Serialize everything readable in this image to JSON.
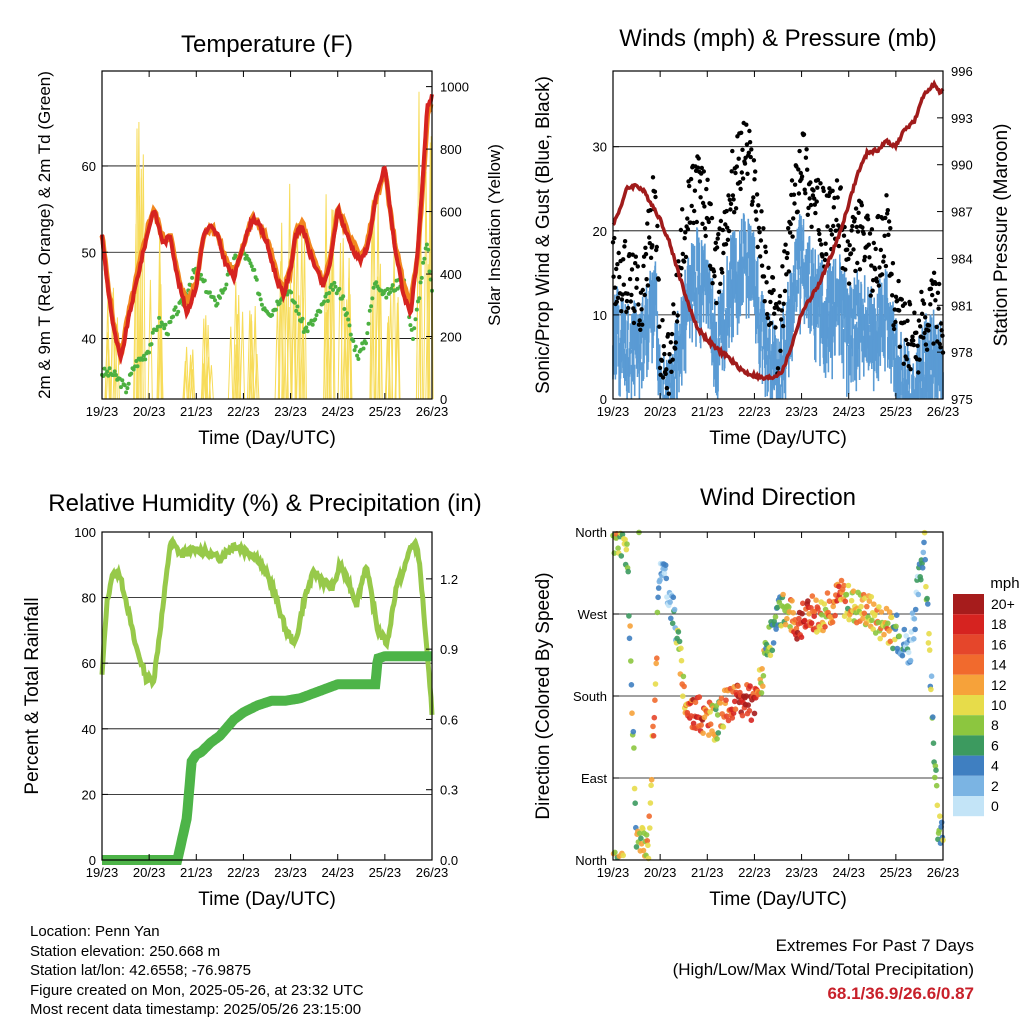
{
  "x_ticks": [
    "19/23",
    "20/23",
    "21/23",
    "22/23",
    "23/23",
    "24/23",
    "25/23",
    "26/23"
  ],
  "colors": {
    "temp_red": "#d62320",
    "temp_orange": "#f2871f",
    "dew_green": "#4bb040",
    "solar_yellow": "#f7dc5a",
    "wind_black": "#000000",
    "sonic_blue": "#5a9bd4",
    "pressure_maroon": "#a01b1b",
    "rh_green": "#97c94a",
    "rain_green": "#4db448"
  },
  "chart_data": [
    {
      "type": "line",
      "title": "Temperature (F)",
      "xlabel": "Time (Day/UTC)",
      "ylabel_left": "2m & 9m T (Red, Orange) & 2m Td (Green)",
      "ylabel_right": "Solar Insolation (Yellow)",
      "x_range_days": [
        0,
        7
      ],
      "ylim_left": [
        33,
        71
      ],
      "ylim_right": [
        0,
        1050
      ],
      "yticks_left": [
        40,
        50,
        60
      ],
      "yticks_right": [
        0,
        200,
        400,
        600,
        800,
        1000
      ],
      "grid_y": true,
      "series": [
        {
          "name": "2m T",
          "x": [
            0,
            0.1,
            0.25,
            0.4,
            0.55,
            0.75,
            1.0,
            1.1,
            1.3,
            1.45,
            1.6,
            1.8,
            2.0,
            2.15,
            2.3,
            2.45,
            2.6,
            2.8,
            3.0,
            3.2,
            3.35,
            3.5,
            3.7,
            3.85,
            4.0,
            4.1,
            4.25,
            4.4,
            4.55,
            4.7,
            4.85,
            5.0,
            5.2,
            5.35,
            5.5,
            5.65,
            5.8,
            6.0,
            6.2,
            6.4,
            6.55,
            6.7,
            6.8,
            6.9,
            7.0
          ],
          "y": [
            52,
            47,
            41,
            37.5,
            42,
            47,
            53,
            55,
            51,
            52,
            47,
            43,
            46,
            52,
            53,
            52,
            49,
            47,
            51,
            54,
            53,
            51,
            47,
            45,
            48,
            52,
            53,
            50,
            48,
            46,
            49,
            55,
            52,
            50,
            49,
            51,
            56,
            60,
            51,
            45,
            43,
            50,
            58,
            67,
            68
          ]
        },
        {
          "name": "9m T",
          "x": [
            0,
            0.1,
            0.25,
            0.4,
            0.55,
            0.75,
            1.0,
            1.1,
            1.3,
            1.45,
            1.6,
            1.8,
            2.0,
            2.15,
            2.3,
            2.45,
            2.6,
            2.8,
            3.0,
            3.2,
            3.35,
            3.5,
            3.7,
            3.85,
            4.0,
            4.1,
            4.25,
            4.4,
            4.55,
            4.7,
            4.85,
            5.0,
            5.2,
            5.35,
            5.5,
            5.65,
            5.8,
            6.0,
            6.2,
            6.4,
            6.55,
            6.7,
            6.8,
            6.9,
            7.0
          ],
          "y": [
            52,
            47.5,
            41.5,
            38,
            42.5,
            47.5,
            53.5,
            55,
            51.5,
            52,
            47.5,
            44,
            46.5,
            52,
            53,
            52,
            49.5,
            47.5,
            51,
            54,
            53,
            51.5,
            47.5,
            45.5,
            48,
            52,
            53.5,
            50.5,
            48.5,
            46.5,
            49.5,
            55,
            52.5,
            50.5,
            49.5,
            51.5,
            56,
            59.5,
            51.5,
            46,
            44,
            50,
            57,
            66,
            67
          ]
        },
        {
          "name": "2m Td",
          "x": [
            0,
            0.2,
            0.4,
            0.5,
            0.7,
            0.9,
            1.0,
            1.2,
            1.4,
            1.55,
            1.7,
            1.9,
            2.0,
            2.2,
            2.4,
            2.6,
            2.8,
            3.0,
            3.2,
            3.4,
            3.6,
            3.7,
            3.9,
            4.1,
            4.3,
            4.5,
            4.7,
            4.9,
            5.1,
            5.3,
            5.45,
            5.6,
            5.8,
            6.0,
            6.2,
            6.4,
            6.6,
            6.8,
            6.9,
            7.0
          ],
          "y": [
            36,
            36,
            35,
            34,
            37,
            38,
            39,
            42,
            41,
            43,
            44,
            47,
            48,
            46,
            44,
            46,
            49,
            50,
            48,
            44,
            43,
            44,
            46,
            44,
            41,
            42,
            44,
            46,
            45,
            40,
            38,
            40,
            47,
            45,
            46,
            47,
            40,
            48,
            51,
            45
          ]
        },
        {
          "name": "Solar Insolation",
          "note_peaks_x": [
            0.2,
            0.85,
            1.15,
            1.85,
            2.2,
            2.85,
            3.15,
            3.85,
            4.2,
            4.85,
            5.15,
            5.85,
            6.15,
            6.85
          ],
          "peaks": [
            380,
            1010,
            620,
            180,
            290,
            420,
            350,
            730,
            570,
            700,
            560,
            760,
            650,
            1010
          ]
        }
      ]
    },
    {
      "type": "scatter",
      "title": "Winds (mph) & Pressure (mb)",
      "xlabel": "Time (Day/UTC)",
      "ylabel_left": "Sonic/Prop Wind & Gust (Blue, Black)",
      "ylabel_right": "Station Pressure (Maroon)",
      "ylim_left": [
        0,
        39
      ],
      "ylim_right": [
        975,
        996
      ],
      "yticks_left": [
        0,
        10,
        20,
        30
      ],
      "yticks_right": [
        975,
        978,
        981,
        984,
        987,
        990,
        993,
        996
      ],
      "grid_y": true,
      "series": [
        {
          "name": "Pressure",
          "type": "line",
          "x": [
            0,
            0.1,
            0.3,
            0.5,
            0.65,
            0.8,
            1.0,
            1.2,
            1.4,
            1.6,
            1.8,
            2.0,
            2.2,
            2.4,
            2.6,
            2.8,
            3.0,
            3.2,
            3.4,
            3.6,
            3.8,
            4.0,
            4.2,
            4.4,
            4.6,
            4.8,
            5.0,
            5.2,
            5.4,
            5.6,
            5.8,
            6.0,
            6.2,
            6.4,
            6.6,
            6.8,
            6.95,
            7.0
          ],
          "y": [
            986.2,
            986.8,
            988.5,
            988.7,
            988.3,
            987.6,
            986.5,
            985,
            983,
            981,
            979.5,
            978.8,
            978.2,
            977.8,
            977.2,
            976.7,
            976.5,
            976.3,
            976.4,
            976.8,
            978.5,
            980.5,
            981.5,
            982.5,
            984,
            985.5,
            987.5,
            989.5,
            990.8,
            990.9,
            991.5,
            991.2,
            992.3,
            992.8,
            994.5,
            995.2,
            994.5,
            994.8
          ]
        },
        {
          "name": "Gust",
          "type": "scatter",
          "x": [
            0,
            0.3,
            0.6,
            0.9,
            1.0,
            1.2,
            1.5,
            1.8,
            2.0,
            2.2,
            2.5,
            2.8,
            3.0,
            3.2,
            3.5,
            3.8,
            4.0,
            4.2,
            4.5,
            4.8,
            5.0,
            5.2,
            5.5,
            5.8,
            6.0,
            6.2,
            6.4,
            6.6,
            6.8,
            7.0
          ],
          "y": [
            16,
            14,
            12,
            24,
            6,
            3,
            20,
            26,
            22,
            14,
            25,
            30,
            26,
            16,
            7,
            22,
            30,
            24,
            20,
            22,
            16,
            20,
            16,
            20,
            11,
            8,
            6,
            10,
            11,
            9
          ]
        },
        {
          "name": "Sonic/Prop Wind",
          "type": "scatter",
          "x": [
            0,
            0.3,
            0.6,
            0.9,
            1.0,
            1.2,
            1.5,
            1.8,
            2.0,
            2.2,
            2.5,
            2.8,
            3.0,
            3.2,
            3.5,
            3.8,
            4.0,
            4.2,
            4.5,
            4.8,
            5.0,
            5.2,
            5.5,
            5.8,
            6.0,
            6.2,
            6.4,
            6.6,
            6.8,
            7.0
          ],
          "y": [
            10,
            8,
            8,
            14,
            2,
            1,
            12,
            17,
            14,
            8,
            16,
            19,
            16,
            9,
            4,
            14,
            19,
            15,
            12,
            14,
            10,
            12,
            10,
            12,
            6,
            3,
            2,
            6,
            7,
            6
          ]
        }
      ]
    },
    {
      "type": "line",
      "title": "Relative Humidity (%) & Precipitation (in)",
      "xlabel": "Time (Day/UTC)",
      "ylabel_left": "Percent & Total Rainfall",
      "ylim_left": [
        0,
        100
      ],
      "ylim_right": [
        0,
        1.4
      ],
      "yticks_left": [
        0,
        20,
        40,
        60,
        80,
        100
      ],
      "yticks_right": [
        0.0,
        0.3,
        0.6,
        0.9,
        1.2
      ],
      "grid_y": true,
      "series": [
        {
          "name": "Relative Humidity",
          "x": [
            0,
            0.1,
            0.2,
            0.35,
            0.5,
            0.7,
            0.95,
            1.1,
            1.3,
            1.45,
            1.7,
            2.0,
            2.3,
            2.5,
            2.8,
            3.1,
            3.3,
            3.6,
            3.9,
            4.1,
            4.3,
            4.5,
            4.7,
            4.9,
            5.05,
            5.25,
            5.4,
            5.6,
            5.85,
            6.05,
            6.25,
            6.4,
            6.55,
            6.7,
            6.8,
            6.9,
            7.0
          ],
          "y": [
            56,
            78,
            86,
            88,
            80,
            66,
            55,
            55,
            78,
            97,
            93,
            95,
            93,
            92,
            96,
            94,
            92,
            84,
            70,
            66,
            80,
            88,
            85,
            83,
            90,
            84,
            78,
            90,
            70,
            66,
            84,
            88,
            96,
            95,
            80,
            62,
            45
          ]
        },
        {
          "name": "Total Rainfall",
          "x": [
            0,
            1.6,
            1.8,
            1.9,
            2.0,
            2.1,
            2.3,
            2.5,
            2.8,
            3.0,
            3.3,
            3.6,
            3.9,
            4.2,
            4.6,
            5.0,
            5.5,
            5.8,
            5.85,
            6.0,
            7.0
          ],
          "y": [
            0,
            0,
            0.18,
            0.42,
            0.45,
            0.46,
            0.5,
            0.53,
            0.6,
            0.63,
            0.66,
            0.68,
            0.68,
            0.69,
            0.72,
            0.75,
            0.75,
            0.75,
            0.86,
            0.87,
            0.87
          ]
        }
      ]
    },
    {
      "type": "scatter",
      "title": "Wind Direction",
      "xlabel": "Time (Day/UTC)",
      "ylabel_left": "Direction (Colored By Speed)",
      "ylim_deg": [
        0,
        360
      ],
      "yticks_left": [
        "North",
        "East",
        "South",
        "West",
        "North"
      ],
      "grid_y": true,
      "legend": {
        "title": "mph",
        "placement": "right",
        "labels": [
          "20+",
          "18",
          "16",
          "14",
          "12",
          "10",
          "8",
          "6",
          "4",
          "2",
          "0"
        ],
        "colors": [
          "#a61c1c",
          "#d62320",
          "#e5462b",
          "#f16a2d",
          "#f6a23a",
          "#e7dc4a",
          "#8cc63f",
          "#3c9a5f",
          "#3f7fc1",
          "#7bb4e3",
          "#c3e4f7"
        ]
      },
      "series": [
        {
          "name": "direction",
          "x": [
            0.1,
            0.3,
            0.5,
            0.75,
            1.0,
            1.3,
            1.55,
            1.8,
            2.0,
            2.2,
            2.4,
            2.7,
            3.0,
            3.3,
            3.6,
            3.9,
            4.2,
            4.5,
            4.8,
            5.1,
            5.4,
            5.7,
            6.0,
            6.3,
            6.6,
            6.9
          ],
          "y": [
            355,
            340,
            20,
            15,
            330,
            270,
            170,
            160,
            155,
            150,
            170,
            175,
            170,
            235,
            280,
            260,
            270,
            270,
            290,
            280,
            275,
            260,
            250,
            230,
            350,
            30
          ]
        }
      ]
    }
  ],
  "info": {
    "location": "Location: Penn Yan",
    "elevation": "Station elevation: 250.668 m",
    "latlon": "Station lat/lon: 42.6558; -76.9875",
    "created": "Figure created on Mon, 2025-05-26, at 23:32 UTC",
    "recent": "Most recent data timestamp: 2025/05/26 23:15:00"
  },
  "extremes": {
    "title": "Extremes For Past 7 Days",
    "subtitle": "(High/Low/Max Wind/Total Precipitation)",
    "values": "68.1/36.9/26.6/0.87"
  }
}
